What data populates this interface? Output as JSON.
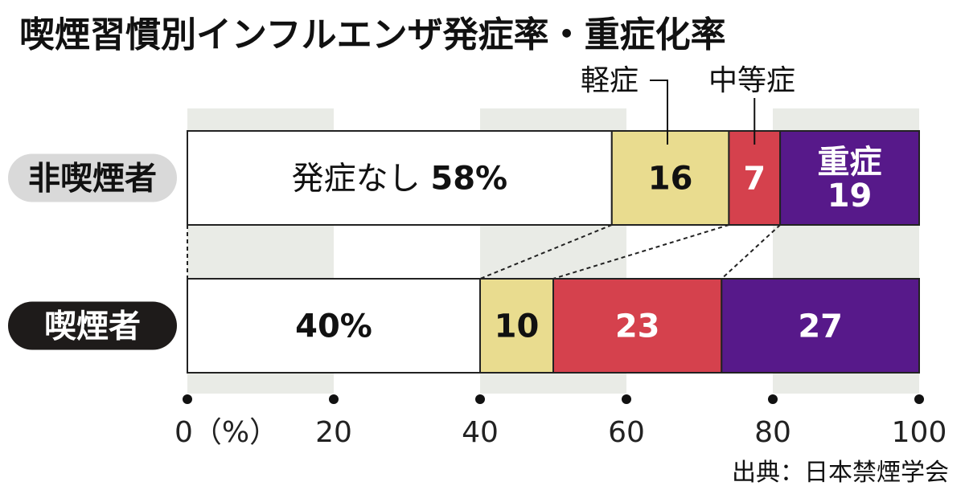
{
  "chart_data": {
    "type": "bar",
    "orientation": "horizontal",
    "stacked": true,
    "title": "喫煙習慣別インフルエンザ発症率・重症化率",
    "categories": [
      "非喫煙者",
      "喫煙者"
    ],
    "series": [
      {
        "name": "発症なし",
        "values": [
          58,
          40
        ],
        "color": "#ffffff"
      },
      {
        "name": "軽症",
        "values": [
          16,
          10
        ],
        "color": "#e9dc8f"
      },
      {
        "name": "中等症",
        "values": [
          7,
          23
        ],
        "color": "#d5414d"
      },
      {
        "name": "重症",
        "values": [
          19,
          27
        ],
        "color": "#57198a"
      }
    ],
    "segment_labels": [
      [
        "発症なし 58%",
        "16",
        "7",
        "重症 19"
      ],
      [
        "40%",
        "10",
        "23",
        "27"
      ]
    ],
    "callouts": {
      "mild": "軽症",
      "moderate": "中等症"
    },
    "xlim": [
      0,
      100
    ],
    "xticks": [
      0,
      20,
      40,
      60,
      80,
      100
    ],
    "xtick_labels": [
      "0（%）",
      "20",
      "40",
      "60",
      "80",
      "100"
    ],
    "grid_band_color": "#e9ebe6",
    "source": "出典：日本禁煙学会"
  }
}
